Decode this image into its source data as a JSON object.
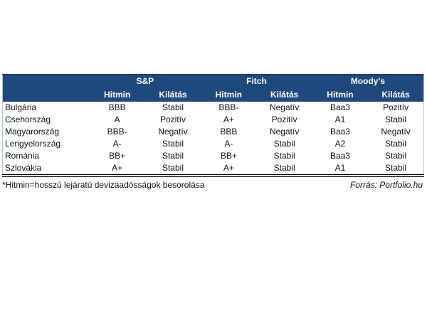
{
  "table": {
    "agencies": [
      {
        "name": "S&P"
      },
      {
        "name": "Fitch"
      },
      {
        "name": "Moody's"
      }
    ],
    "subheaders": {
      "rating": "Hitmin",
      "outlook": "Kilátás"
    },
    "rows": [
      {
        "country": "Bulgária",
        "values": [
          "BBB",
          "Stabil",
          "BBB-",
          "Negatív",
          "Baa3",
          "Pozitív"
        ]
      },
      {
        "country": "Csehország",
        "values": [
          "A",
          "Pozitív",
          "A+",
          "Pozitív",
          "A1",
          "Stabil"
        ]
      },
      {
        "country": "Magyarország",
        "values": [
          "BBB-",
          "Negatív",
          "BBB",
          "Negatív",
          "Baa3",
          "Negatív"
        ]
      },
      {
        "country": "Lengyelország",
        "values": [
          "A-",
          "Stabil",
          "A-",
          "Stabil",
          "A2",
          "Stabil"
        ]
      },
      {
        "country": "Románia",
        "values": [
          "BB+",
          "Stabil",
          "BB+",
          "Stabil",
          "Baa3",
          "Stabil"
        ]
      },
      {
        "country": "Szlovákia",
        "values": [
          "A+",
          "Stabil",
          "A+",
          "Stabil",
          "A1",
          "Stabil"
        ]
      }
    ],
    "footnote": "*Hitmin=hosszú lejáratú devizaadósságok besorolása",
    "source": "Forrás: Portfolio.hu"
  },
  "colors": {
    "header_bg": "#1F497D",
    "header_text": "#FFFFFF",
    "body_text": "#111111",
    "bottom_rule": "#000000"
  }
}
